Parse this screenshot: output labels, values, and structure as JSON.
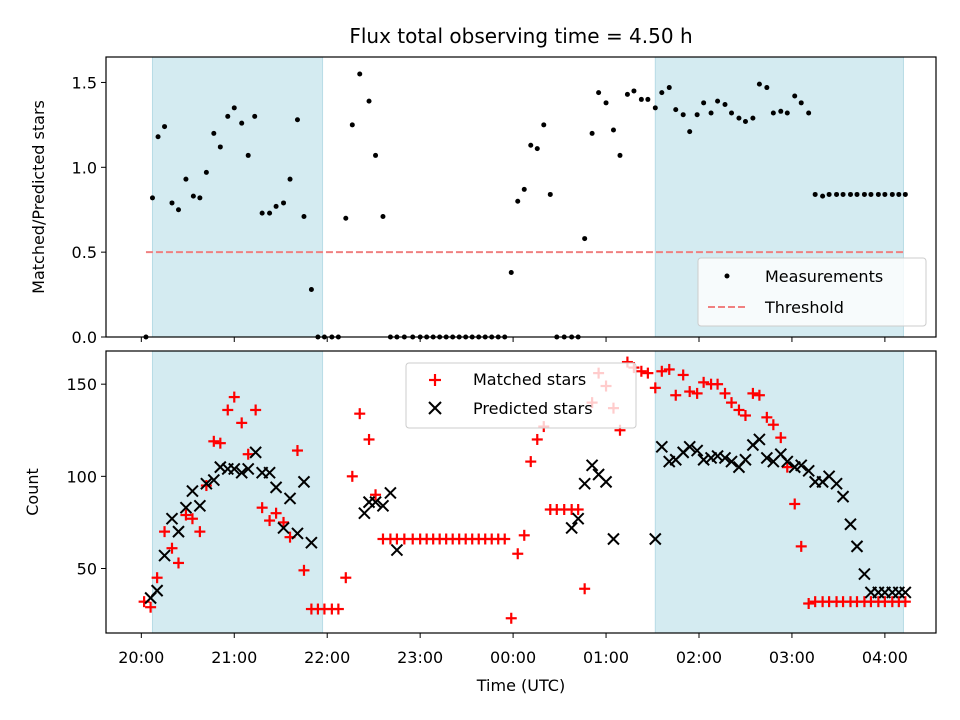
{
  "chart_data": [
    {
      "type": "scatter",
      "title": "Flux total observing time = 4.50 h",
      "ylabel": "Matched/Predicted stars",
      "xlabel": "",
      "ylim": [
        0,
        1.65
      ],
      "yticks": [
        0.0,
        0.5,
        1.0,
        1.5
      ],
      "ytick_labels": [
        "0.0",
        "0.5",
        "1.0",
        "1.5"
      ],
      "x_unit": "hours since 20:00 UTC",
      "xlim": [
        -0.38,
        8.55
      ],
      "grid": false,
      "legend_position": "lower-right",
      "shaded_regions": [
        [
          0.12,
          1.95
        ],
        [
          5.53,
          8.2
        ]
      ],
      "shade_color": "#d4ebf1",
      "threshold": {
        "name": "Threshold",
        "value": 0.5,
        "x_range": [
          0.05,
          8.2
        ],
        "color": "#f08080"
      },
      "series": [
        {
          "name": "Measurements",
          "color": "#000000",
          "x": [
            0.05,
            0.12,
            0.18,
            0.25,
            0.33,
            0.4,
            0.48,
            0.56,
            0.63,
            0.7,
            0.78,
            0.85,
            0.93,
            1.0,
            1.08,
            1.15,
            1.22,
            1.3,
            1.38,
            1.45,
            1.53,
            1.6,
            1.68,
            1.75,
            1.83,
            1.9,
            1.97,
            2.05,
            2.12,
            2.2,
            2.27,
            2.35,
            2.45,
            2.52,
            2.6,
            2.68,
            2.75,
            2.83,
            2.92,
            3.0,
            3.07,
            3.14,
            3.21,
            3.28,
            3.35,
            3.42,
            3.49,
            3.56,
            3.63,
            3.7,
            3.77,
            3.84,
            3.91,
            3.98,
            4.05,
            4.12,
            4.19,
            4.26,
            4.33,
            4.4,
            4.47,
            4.55,
            4.63,
            4.7,
            4.77,
            4.85,
            4.92,
            5.0,
            5.08,
            5.15,
            5.23,
            5.3,
            5.38,
            5.45,
            5.53,
            5.6,
            5.68,
            5.75,
            5.83,
            5.9,
            5.98,
            6.05,
            6.13,
            6.2,
            6.28,
            6.35,
            6.43,
            6.5,
            6.58,
            6.65,
            6.73,
            6.8,
            6.88,
            6.95,
            7.03,
            7.1,
            7.18,
            7.25,
            7.33,
            7.4,
            7.48,
            7.55,
            7.63,
            7.7,
            7.78,
            7.85,
            7.93,
            8.0,
            8.08,
            8.15,
            8.22
          ],
          "y": [
            0.0,
            0.82,
            1.18,
            1.24,
            0.79,
            0.75,
            0.93,
            0.83,
            0.82,
            0.97,
            1.2,
            1.12,
            1.3,
            1.35,
            1.26,
            1.07,
            1.3,
            0.73,
            0.73,
            0.77,
            0.79,
            0.93,
            1.28,
            0.71,
            0.28,
            0.0,
            0.0,
            0.0,
            0.0,
            0.7,
            1.25,
            1.55,
            1.39,
            1.07,
            0.71,
            0.0,
            0.0,
            0.0,
            0.0,
            0.0,
            0.0,
            0.0,
            0.0,
            0.0,
            0.0,
            0.0,
            0.0,
            0.0,
            0.0,
            0.0,
            0.0,
            0.0,
            0.0,
            0.38,
            0.8,
            0.87,
            1.13,
            1.11,
            1.25,
            0.84,
            0.0,
            0.0,
            0.0,
            0.0,
            0.58,
            1.2,
            1.44,
            1.38,
            1.22,
            1.07,
            1.43,
            1.45,
            1.4,
            1.4,
            1.35,
            1.44,
            1.47,
            1.34,
            1.31,
            1.21,
            1.31,
            1.38,
            1.32,
            1.39,
            1.37,
            1.32,
            1.29,
            1.27,
            1.29,
            1.49,
            1.47,
            1.32,
            1.33,
            1.32,
            1.42,
            1.38,
            1.32,
            0.84,
            0.83,
            0.84,
            0.84,
            0.84,
            0.84,
            0.84,
            0.84,
            0.84,
            0.84,
            0.84,
            0.84,
            0.84,
            0.84
          ]
        }
      ]
    },
    {
      "type": "scatter",
      "title": "",
      "ylabel": "Count",
      "xlabel": "Time (UTC)",
      "ylim": [
        15,
        168
      ],
      "yticks": [
        50,
        100,
        150
      ],
      "ytick_labels": [
        "50",
        "100",
        "150"
      ],
      "x_unit": "hours since 20:00 UTC",
      "xlim": [
        -0.38,
        8.55
      ],
      "xticks": [
        0,
        1,
        2,
        3,
        4,
        5,
        6,
        7,
        8
      ],
      "xtick_labels": [
        "20:00",
        "21:00",
        "22:00",
        "23:00",
        "00:00",
        "01:00",
        "02:00",
        "03:00",
        "04:00"
      ],
      "grid": false,
      "legend_position": "top-center",
      "shaded_regions": [
        [
          0.12,
          1.95
        ],
        [
          5.53,
          8.2
        ]
      ],
      "series": [
        {
          "name": "Matched stars",
          "marker": "plus",
          "color": "#ff0000",
          "x": [
            0.03,
            0.1,
            0.17,
            0.25,
            0.33,
            0.4,
            0.48,
            0.55,
            0.63,
            0.7,
            0.78,
            0.85,
            0.93,
            1.0,
            1.08,
            1.15,
            1.23,
            1.3,
            1.38,
            1.45,
            1.53,
            1.6,
            1.68,
            1.75,
            1.83,
            1.9,
            1.97,
            2.05,
            2.12,
            2.2,
            2.27,
            2.35,
            2.45,
            2.52,
            2.6,
            2.68,
            2.75,
            2.83,
            2.92,
            3.0,
            3.07,
            3.14,
            3.21,
            3.28,
            3.35,
            3.42,
            3.49,
            3.56,
            3.63,
            3.7,
            3.77,
            3.84,
            3.91,
            3.98,
            4.05,
            4.12,
            4.19,
            4.26,
            4.33,
            4.4,
            4.47,
            4.55,
            4.63,
            4.7,
            4.77,
            4.85,
            4.92,
            5.0,
            5.08,
            5.15,
            5.23,
            5.3,
            5.38,
            5.45,
            5.53,
            5.6,
            5.68,
            5.75,
            5.83,
            5.9,
            5.98,
            6.05,
            6.13,
            6.2,
            6.28,
            6.35,
            6.43,
            6.5,
            6.58,
            6.65,
            6.73,
            6.8,
            6.88,
            6.95,
            7.03,
            7.1,
            7.18,
            7.25,
            7.33,
            7.4,
            7.48,
            7.55,
            7.63,
            7.7,
            7.78,
            7.85,
            7.93,
            8.0,
            8.08,
            8.15,
            8.22
          ],
          "y": [
            32,
            29,
            45,
            70,
            61,
            53,
            79,
            77,
            70,
            95,
            119,
            118,
            136,
            143,
            129,
            112,
            136,
            83,
            76,
            80,
            75,
            67,
            114,
            49,
            28,
            28,
            28,
            28,
            28,
            45,
            100,
            134,
            120,
            90,
            66,
            66,
            66,
            66,
            66,
            66,
            66,
            66,
            66,
            66,
            66,
            66,
            66,
            66,
            66,
            66,
            66,
            66,
            66,
            23,
            58,
            68,
            108,
            120,
            127,
            82,
            82,
            82,
            82,
            82,
            39,
            140,
            156,
            149,
            137,
            125,
            162,
            159,
            157,
            156,
            148,
            157,
            158,
            144,
            155,
            146,
            145,
            151,
            150,
            150,
            145,
            140,
            136,
            133,
            145,
            144,
            132,
            128,
            121,
            105,
            85,
            62,
            31,
            32,
            32,
            32,
            32,
            32,
            32,
            32,
            32,
            32,
            32,
            32,
            32,
            32,
            32
          ]
        },
        {
          "name": "Predicted stars",
          "marker": "x",
          "color": "#000000",
          "x": [
            0.1,
            0.17,
            0.25,
            0.33,
            0.4,
            0.48,
            0.55,
            0.63,
            0.7,
            0.78,
            0.85,
            0.93,
            1.0,
            1.08,
            1.15,
            1.23,
            1.3,
            1.38,
            1.45,
            1.53,
            1.6,
            1.68,
            1.75,
            1.83,
            2.4,
            2.45,
            2.52,
            2.6,
            2.68,
            2.75,
            4.63,
            4.7,
            4.77,
            4.85,
            4.92,
            5.0,
            5.08,
            5.53,
            5.6,
            5.68,
            5.75,
            5.83,
            5.9,
            5.98,
            6.05,
            6.13,
            6.2,
            6.28,
            6.35,
            6.43,
            6.5,
            6.58,
            6.65,
            6.73,
            6.8,
            6.88,
            6.95,
            7.03,
            7.1,
            7.18,
            7.25,
            7.33,
            7.4,
            7.48,
            7.55,
            7.63,
            7.7,
            7.78,
            7.85,
            7.93,
            8.0,
            8.08,
            8.15,
            8.22
          ],
          "y": [
            34,
            38,
            57,
            77,
            70,
            83,
            92,
            84,
            96,
            98,
            105,
            104,
            104,
            102,
            104,
            113,
            102,
            102,
            94,
            72,
            88,
            69,
            97,
            64,
            80,
            86,
            86,
            84,
            91,
            60,
            72,
            77,
            96,
            106,
            101,
            97,
            66,
            66,
            116,
            108,
            109,
            113,
            116,
            114,
            109,
            110,
            111,
            110,
            108,
            105,
            109,
            117,
            120,
            110,
            108,
            112,
            108,
            105,
            106,
            103,
            97,
            97,
            100,
            96,
            89,
            74,
            62,
            47,
            37,
            37,
            37,
            37,
            37,
            37
          ]
        }
      ]
    }
  ]
}
